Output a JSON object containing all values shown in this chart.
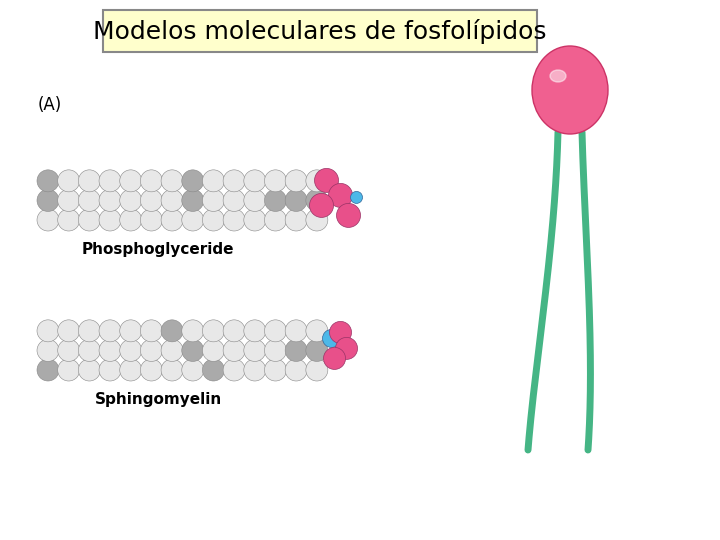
{
  "title": "Modelos moleculares de fosfolípidos",
  "title_fontsize": 18,
  "title_box_color": "#ffffcc",
  "title_box_edge": "#888888",
  "background_color": "#ffffff",
  "label_A": "(A)",
  "label_phospho": "Phosphoglyceride",
  "label_sphingo": "Sphingomyelin",
  "sphere_white": "#e8e8e8",
  "sphere_gray": "#aaaaaa",
  "sphere_pink": "#e8508a",
  "sphere_blue": "#4db8e8",
  "sphere_outline": "#888888",
  "head_pink": "#f06090",
  "tail_green": "#45b585"
}
